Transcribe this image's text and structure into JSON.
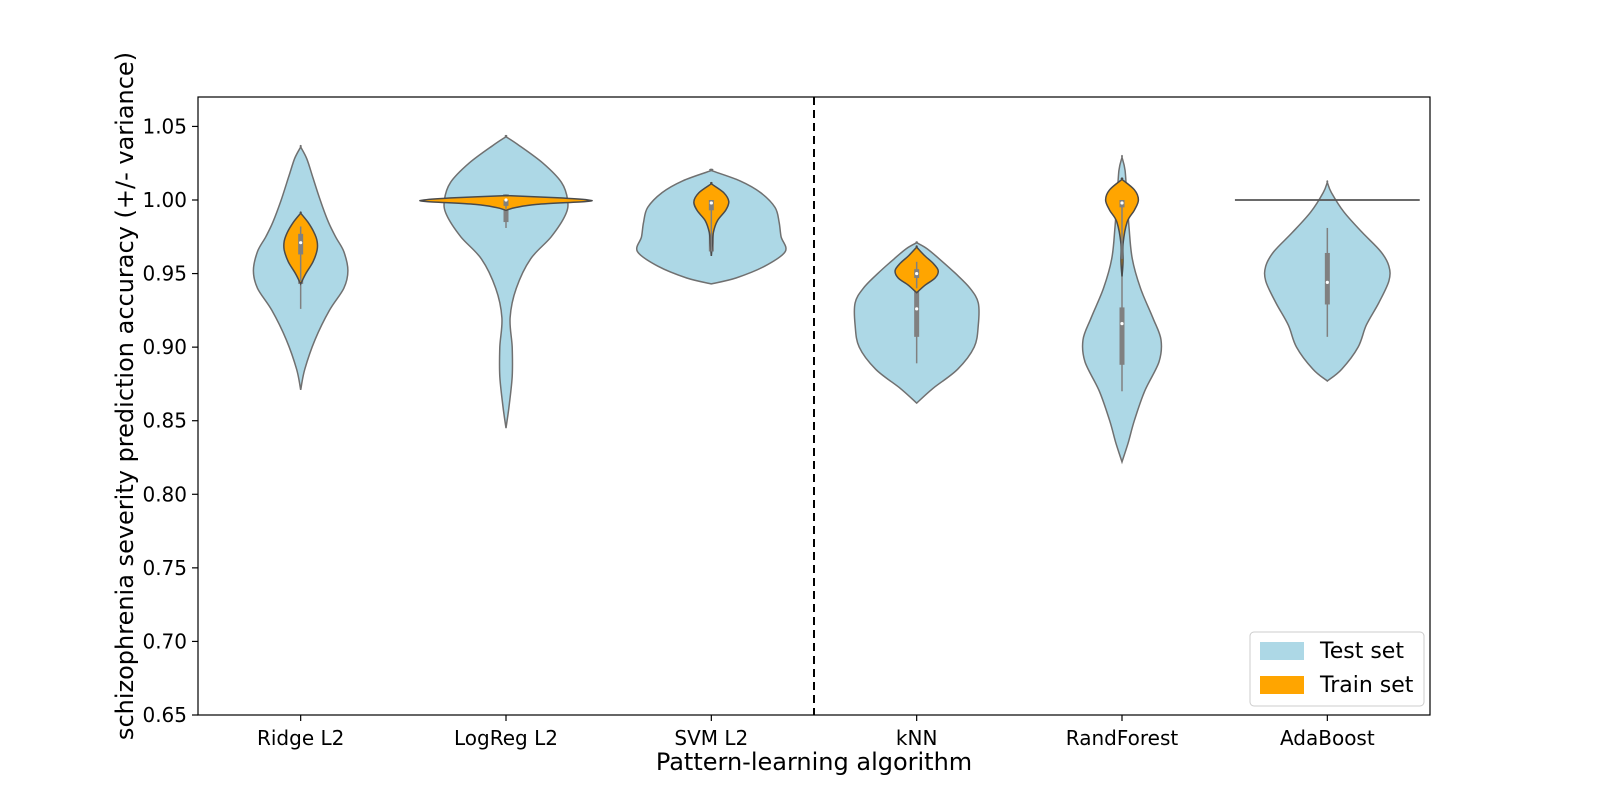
{
  "chart_data": {
    "type": "violin",
    "xlabel": "Pattern-learning algorithm",
    "ylabel": "schizophrenia severity prediction accuracy (+/- variance)",
    "ylim": [
      0.65,
      1.07
    ],
    "yticks": [
      "0.65",
      "0.70",
      "0.75",
      "0.80",
      "0.85",
      "0.90",
      "0.95",
      "1.00",
      "1.05"
    ],
    "categories": [
      "Ridge L2",
      "LogReg L2",
      "SVM L2",
      "kNN",
      "RandForest",
      "AdaBoost"
    ],
    "divider_after_category": "SVM L2",
    "colors": {
      "test": "#add8e6",
      "train": "#ffa500",
      "outline": "#707070",
      "box": "#808080"
    },
    "legend": {
      "position": "lower-right",
      "entries": [
        {
          "label": "Test set",
          "color": "#add8e6"
        },
        {
          "label": "Train set",
          "color": "#ffa500"
        }
      ]
    },
    "series": [
      {
        "name": "Test set",
        "distributions": [
          {
            "min": 0.871,
            "max": 1.036,
            "q1": 0.943,
            "median": 0.953,
            "q3": 0.978,
            "wlo": 0.926,
            "whi": 0.99,
            "shape": [
              [
                0.871,
                0
              ],
              [
                0.885,
                0.04
              ],
              [
                0.905,
                0.14
              ],
              [
                0.925,
                0.28
              ],
              [
                0.94,
                0.42
              ],
              [
                0.952,
                0.46
              ],
              [
                0.965,
                0.42
              ],
              [
                0.975,
                0.34
              ],
              [
                0.985,
                0.27
              ],
              [
                1.0,
                0.19
              ],
              [
                1.015,
                0.12
              ],
              [
                1.028,
                0.06
              ],
              [
                1.036,
                0
              ]
            ]
          },
          {
            "min": 0.845,
            "max": 1.043,
            "q1": 0.985,
            "median": 0.995,
            "q3": 1.0,
            "wlo": 0.981,
            "whi": 1.0,
            "shape": [
              [
                0.845,
                0
              ],
              [
                0.86,
                0.03
              ],
              [
                0.88,
                0.06
              ],
              [
                0.9,
                0.06
              ],
              [
                0.92,
                0.04
              ],
              [
                0.94,
                0.1
              ],
              [
                0.96,
                0.24
              ],
              [
                0.975,
                0.44
              ],
              [
                0.99,
                0.58
              ],
              [
                1.0,
                0.6
              ],
              [
                1.012,
                0.54
              ],
              [
                1.025,
                0.36
              ],
              [
                1.037,
                0.13
              ],
              [
                1.043,
                0
              ]
            ]
          },
          {
            "min": 0.943,
            "max": 1.02,
            "q1": 0.965,
            "median": 0.982,
            "q3": 1.0,
            "wlo": 0.962,
            "whi": 1.0,
            "shape": [
              [
                0.943,
                0
              ],
              [
                0.947,
                0.24
              ],
              [
                0.955,
                0.52
              ],
              [
                0.965,
                0.72
              ],
              [
                0.975,
                0.68
              ],
              [
                0.985,
                0.66
              ],
              [
                0.995,
                0.62
              ],
              [
                1.005,
                0.48
              ],
              [
                1.013,
                0.28
              ],
              [
                1.02,
                0
              ]
            ]
          },
          {
            "min": 0.862,
            "max": 0.971,
            "q1": 0.907,
            "median": 0.926,
            "q3": 0.942,
            "wlo": 0.889,
            "whi": 0.96,
            "shape": [
              [
                0.862,
                0
              ],
              [
                0.872,
                0.16
              ],
              [
                0.885,
                0.4
              ],
              [
                0.9,
                0.56
              ],
              [
                0.915,
                0.6
              ],
              [
                0.93,
                0.6
              ],
              [
                0.94,
                0.52
              ],
              [
                0.95,
                0.38
              ],
              [
                0.96,
                0.22
              ],
              [
                0.967,
                0.1
              ],
              [
                0.971,
                0
              ]
            ]
          },
          {
            "min": 0.822,
            "max": 1.029,
            "q1": 0.888,
            "median": 0.916,
            "q3": 0.927,
            "wlo": 0.87,
            "whi": 0.955,
            "shape": [
              [
                0.822,
                0
              ],
              [
                0.835,
                0.06
              ],
              [
                0.85,
                0.12
              ],
              [
                0.87,
                0.22
              ],
              [
                0.89,
                0.36
              ],
              [
                0.905,
                0.38
              ],
              [
                0.92,
                0.3
              ],
              [
                0.94,
                0.18
              ],
              [
                0.96,
                0.1
              ],
              [
                0.98,
                0.07
              ],
              [
                1.0,
                0.05
              ],
              [
                1.02,
                0.03
              ],
              [
                1.029,
                0
              ]
            ]
          },
          {
            "min": 0.877,
            "max": 1.012,
            "q1": 0.929,
            "median": 0.944,
            "q3": 0.964,
            "wlo": 0.907,
            "whi": 0.981,
            "shape": [
              [
                0.877,
                0
              ],
              [
                0.885,
                0.14
              ],
              [
                0.9,
                0.3
              ],
              [
                0.915,
                0.38
              ],
              [
                0.93,
                0.5
              ],
              [
                0.945,
                0.6
              ],
              [
                0.955,
                0.6
              ],
              [
                0.965,
                0.52
              ],
              [
                0.978,
                0.34
              ],
              [
                0.992,
                0.16
              ],
              [
                1.005,
                0.04
              ],
              [
                1.012,
                0
              ]
            ]
          }
        ]
      },
      {
        "name": "Train set",
        "distributions": [
          {
            "min": 0.943,
            "max": 0.991,
            "q1": 0.963,
            "median": 0.971,
            "q3": 0.977,
            "wlo": 0.945,
            "whi": 0.982,
            "shape": [
              [
                0.943,
                0
              ],
              [
                0.95,
                0.05
              ],
              [
                0.958,
                0.12
              ],
              [
                0.966,
                0.16
              ],
              [
                0.972,
                0.16
              ],
              [
                0.978,
                0.13
              ],
              [
                0.985,
                0.07
              ],
              [
                0.991,
                0
              ]
            ]
          },
          {
            "min": 0.993,
            "max": 1.003,
            "q1": 0.996,
            "median": 1.0,
            "q3": 1.0,
            "wlo": 0.994,
            "whi": 1.0,
            "shape": [
              [
                0.993,
                0
              ],
              [
                0.995,
                0.1
              ],
              [
                0.997,
                0.3
              ],
              [
                0.999,
                0.78
              ],
              [
                1.0,
                0.8
              ],
              [
                1.0015,
                0.5
              ],
              [
                1.003,
                0
              ]
            ]
          },
          {
            "min": 0.962,
            "max": 1.011,
            "q1": 0.993,
            "median": 0.998,
            "q3": 1.0,
            "wlo": 0.965,
            "whi": 1.0,
            "shape": [
              [
                0.962,
                0
              ],
              [
                0.97,
                0.01
              ],
              [
                0.978,
                0.02
              ],
              [
                0.986,
                0.06
              ],
              [
                0.993,
                0.14
              ],
              [
                0.999,
                0.17
              ],
              [
                1.005,
                0.12
              ],
              [
                1.011,
                0
              ]
            ]
          },
          {
            "min": 0.937,
            "max": 0.968,
            "q1": 0.947,
            "median": 0.95,
            "q3": 0.953,
            "wlo": 0.94,
            "whi": 0.958,
            "shape": [
              [
                0.937,
                0
              ],
              [
                0.942,
                0.08
              ],
              [
                0.947,
                0.18
              ],
              [
                0.952,
                0.21
              ],
              [
                0.957,
                0.16
              ],
              [
                0.962,
                0.08
              ],
              [
                0.968,
                0
              ]
            ]
          },
          {
            "min": 0.948,
            "max": 1.014,
            "q1": 0.995,
            "median": 0.998,
            "q3": 1.0,
            "wlo": 0.96,
            "whi": 1.0,
            "shape": [
              [
                0.948,
                0
              ],
              [
                0.958,
                0.01
              ],
              [
                0.97,
                0.01
              ],
              [
                0.985,
                0.05
              ],
              [
                0.993,
                0.12
              ],
              [
                1.0,
                0.16
              ],
              [
                1.007,
                0.12
              ],
              [
                1.014,
                0
              ]
            ]
          },
          {
            "min": 1.0,
            "max": 1.0,
            "q1": 1.0,
            "median": 1.0,
            "q3": 1.0,
            "wlo": 1.0,
            "whi": 1.0,
            "flat": true,
            "flat_halfwidth": 0.9
          }
        ]
      }
    ]
  }
}
